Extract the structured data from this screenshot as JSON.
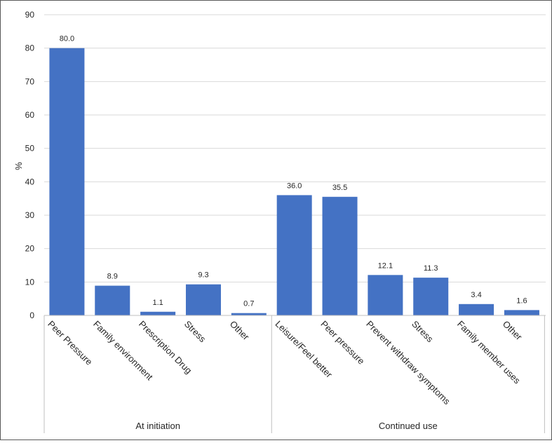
{
  "chart_data": {
    "type": "bar",
    "ylabel": "%",
    "ylim": [
      0,
      90
    ],
    "yticks": [
      0,
      10,
      20,
      30,
      40,
      50,
      60,
      70,
      80,
      90
    ],
    "grid": true,
    "legend": "none",
    "colors": {
      "bar": "#4472c4",
      "grid": "#d9d9d9"
    },
    "groups": [
      {
        "name": "At initiation",
        "categories": [
          "Peer Pressure",
          "Family environment",
          "Prescription Drug",
          "Stress",
          "Other"
        ],
        "values": [
          80.0,
          8.9,
          1.1,
          9.3,
          0.7
        ],
        "value_labels": [
          "80.0",
          "8.9",
          "1.1",
          "9.3",
          "0.7"
        ]
      },
      {
        "name": "Continued use",
        "categories": [
          "Leisure/Feel better",
          "Peer pressure",
          "Prevent withdraw symptoms",
          "Stress",
          "Family member uses",
          "Other"
        ],
        "values": [
          36.0,
          35.5,
          12.1,
          11.3,
          3.4,
          1.6
        ],
        "value_labels": [
          "36.0",
          "35.5",
          "12.1",
          "11.3",
          "3.4",
          "1.6"
        ]
      }
    ]
  }
}
